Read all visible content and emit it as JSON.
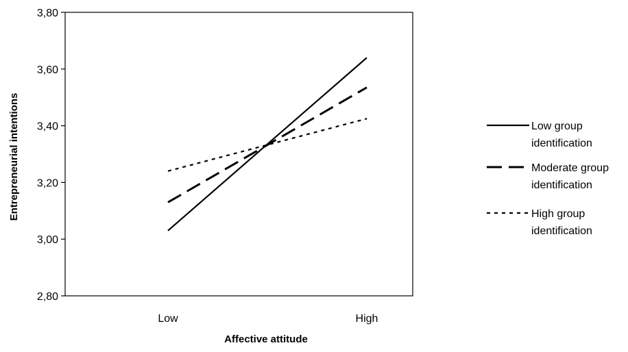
{
  "chart_data": {
    "type": "line",
    "title": "",
    "xlabel": "Affective attitude",
    "ylabel": "Entrepreneurial intentions",
    "categories": [
      "Low",
      "High"
    ],
    "ylim": [
      2.8,
      3.8
    ],
    "yticks": [
      "2,80",
      "3,00",
      "3,20",
      "3,40",
      "3,60",
      "3,80"
    ],
    "ytick_values": [
      2.8,
      3.0,
      3.2,
      3.4,
      3.6,
      3.8
    ],
    "grid": false,
    "legend_position": "right",
    "series": [
      {
        "name_lines": [
          "Low group",
          "identification"
        ],
        "values": [
          3.03,
          3.64
        ],
        "style": "solid"
      },
      {
        "name_lines": [
          "Moderate group",
          "identification"
        ],
        "values": [
          3.13,
          3.535
        ],
        "style": "dashed"
      },
      {
        "name_lines": [
          "High group",
          "identification"
        ],
        "values": [
          3.24,
          3.425
        ],
        "style": "dotted"
      }
    ],
    "colors": {
      "line": "#000000",
      "background": "#ffffff"
    }
  }
}
